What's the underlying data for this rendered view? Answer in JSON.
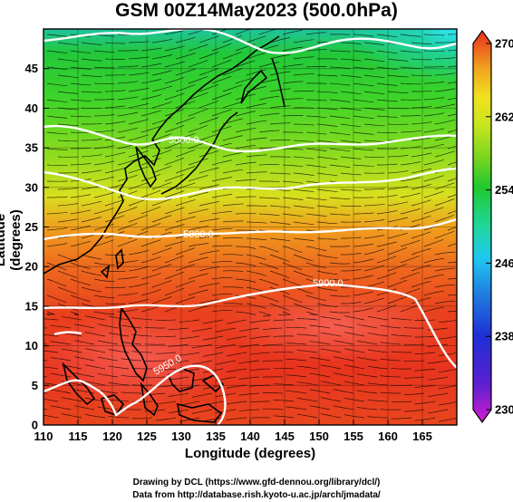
{
  "title": "GSM 00Z14May2023 (500.0hPa)",
  "axes": {
    "xlabel": "Longitude (degrees)",
    "ylabel": "Latitude (degrees)",
    "x_ticks": [
      "110",
      "115",
      "120",
      "125",
      "130",
      "135",
      "140",
      "145",
      "150",
      "155",
      "160",
      "165"
    ],
    "y_ticks": [
      "0",
      "5",
      "10",
      "15",
      "20",
      "25",
      "30",
      "35",
      "40",
      "45"
    ],
    "x_range_deg": [
      110,
      170
    ],
    "y_range_deg": [
      0,
      50
    ]
  },
  "colorbar": {
    "ticks": [
      "230",
      "238",
      "246",
      "254",
      "262",
      "270"
    ],
    "range": [
      230,
      270
    ],
    "colors": [
      "#d11ed1",
      "#5a1fd0",
      "#1f2fd6",
      "#1f7fe0",
      "#1fc8f0",
      "#1fd79c",
      "#20c830",
      "#7cd61e",
      "#c8e61e",
      "#f0e11e",
      "#f0a81e",
      "#ee6a1e",
      "#e8301e"
    ]
  },
  "contours": [
    {
      "label": "5500.0"
    },
    {
      "label": "5800.0"
    },
    {
      "label": "5900.0"
    },
    {
      "label": "5950.0"
    }
  ],
  "credits": {
    "line1": "Drawing by DCL (https://www.gfd-dennou.org/library/dcl/)",
    "line2": "Data from http://database.rish.kyoto-u.ac.jp/arch/jmadata/"
  }
}
